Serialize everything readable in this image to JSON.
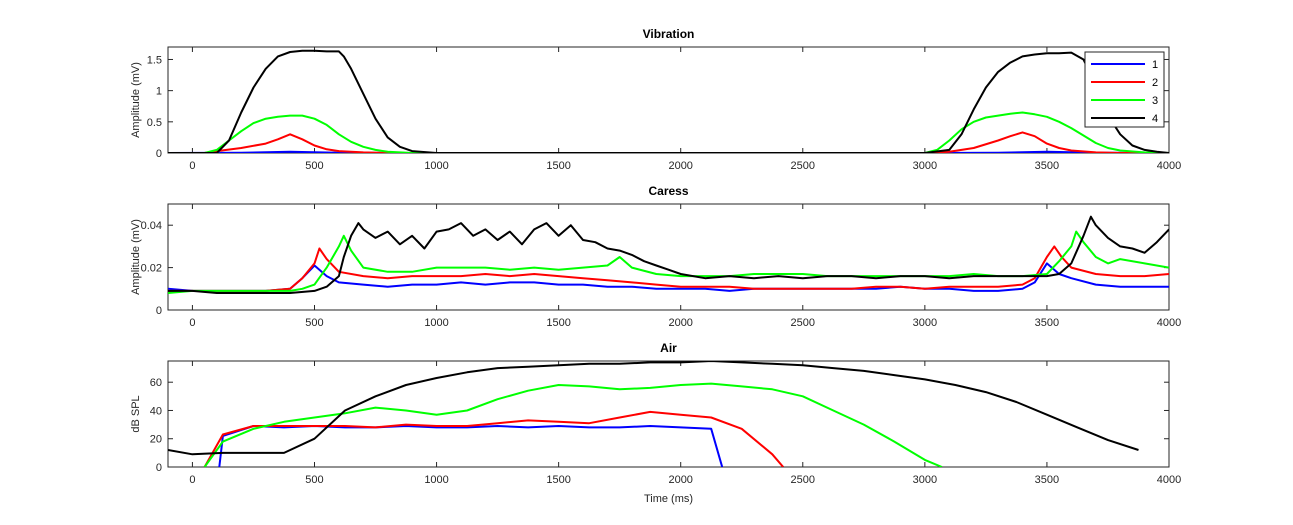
{
  "legend": {
    "placement": "top-right of first panel",
    "entries": [
      {
        "name": "1",
        "color": "#0000ff"
      },
      {
        "name": "2",
        "color": "#ff0000"
      },
      {
        "name": "3",
        "color": "#00ff00"
      },
      {
        "name": "4",
        "color": "#000000"
      }
    ]
  },
  "chart_data": [
    {
      "type": "line",
      "title": "Vibration",
      "xlabel": "",
      "ylabel": "Amplitude (mV)",
      "xlim": [
        -100,
        4000
      ],
      "ylim": [
        0,
        1.7
      ],
      "xticks": [
        0,
        500,
        1000,
        1500,
        2000,
        2500,
        3000,
        3500,
        4000
      ],
      "yticks": [
        0,
        0.5,
        1,
        1.5
      ],
      "ytick_labels": [
        "0",
        "0.5",
        "1",
        "1.5"
      ],
      "grid": false,
      "series": [
        {
          "name": "1",
          "color": "#0000ff",
          "x": [
            -100,
            200,
            400,
            600,
            900,
            3000,
            3300,
            3500,
            3700,
            4000
          ],
          "y": [
            0,
            0.005,
            0.02,
            0.005,
            0,
            0,
            0.005,
            0.02,
            0.005,
            0
          ]
        },
        {
          "name": "2",
          "color": "#ff0000",
          "x": [
            -100,
            50,
            100,
            200,
            300,
            350,
            400,
            450,
            500,
            550,
            600,
            700,
            800,
            3000,
            3100,
            3200,
            3300,
            3350,
            3400,
            3450,
            3500,
            3550,
            3600,
            3700,
            3800,
            4000
          ],
          "y": [
            0,
            0,
            0.03,
            0.08,
            0.15,
            0.22,
            0.3,
            0.22,
            0.12,
            0.06,
            0.03,
            0.01,
            0,
            0,
            0.02,
            0.08,
            0.2,
            0.27,
            0.33,
            0.27,
            0.15,
            0.08,
            0.04,
            0.01,
            0,
            0
          ]
        },
        {
          "name": "3",
          "color": "#00ff00",
          "x": [
            -100,
            50,
            100,
            150,
            200,
            250,
            300,
            350,
            400,
            450,
            500,
            550,
            600,
            650,
            700,
            750,
            800,
            900,
            3000,
            3050,
            3100,
            3150,
            3200,
            3250,
            3300,
            3350,
            3400,
            3450,
            3500,
            3550,
            3600,
            3650,
            3700,
            3750,
            3800,
            3900,
            4000
          ],
          "y": [
            0,
            0,
            0.05,
            0.2,
            0.35,
            0.48,
            0.55,
            0.58,
            0.6,
            0.6,
            0.55,
            0.45,
            0.3,
            0.18,
            0.1,
            0.05,
            0.02,
            0,
            0,
            0.05,
            0.2,
            0.38,
            0.5,
            0.57,
            0.6,
            0.63,
            0.65,
            0.62,
            0.58,
            0.5,
            0.4,
            0.28,
            0.16,
            0.08,
            0.04,
            0.01,
            0
          ]
        },
        {
          "name": "4",
          "color": "#000000",
          "x": [
            -100,
            100,
            150,
            200,
            250,
            300,
            350,
            400,
            450,
            500,
            550,
            600,
            620,
            650,
            700,
            750,
            800,
            850,
            900,
            1000,
            3000,
            3100,
            3150,
            3200,
            3250,
            3300,
            3350,
            3400,
            3450,
            3500,
            3550,
            3600,
            3650,
            3700,
            3750,
            3800,
            3850,
            3900,
            3950,
            4000
          ],
          "y": [
            0,
            0,
            0.2,
            0.65,
            1.05,
            1.35,
            1.55,
            1.62,
            1.64,
            1.64,
            1.63,
            1.63,
            1.55,
            1.35,
            0.95,
            0.55,
            0.25,
            0.1,
            0.03,
            0,
            0,
            0.05,
            0.3,
            0.7,
            1.05,
            1.3,
            1.45,
            1.55,
            1.58,
            1.6,
            1.6,
            1.61,
            1.5,
            1.1,
            0.6,
            0.3,
            0.12,
            0.05,
            0.02,
            0
          ]
        }
      ]
    },
    {
      "type": "line",
      "title": "Caress",
      "xlabel": "",
      "ylabel": "Amplitude (mV)",
      "xlim": [
        -100,
        4000
      ],
      "ylim": [
        0,
        0.05
      ],
      "xticks": [
        0,
        500,
        1000,
        1500,
        2000,
        2500,
        3000,
        3500,
        4000
      ],
      "yticks": [
        0,
        0.02,
        0.04
      ],
      "ytick_labels": [
        "0",
        "0.02",
        "0.04"
      ],
      "grid": false,
      "series": [
        {
          "name": "1",
          "color": "#0000ff",
          "x": [
            -100,
            0,
            100,
            200,
            300,
            400,
            450,
            500,
            550,
            600,
            700,
            800,
            900,
            1000,
            1100,
            1200,
            1300,
            1400,
            1500,
            1600,
            1700,
            1800,
            1900,
            2000,
            2100,
            2200,
            2300,
            2400,
            2500,
            2600,
            2700,
            2800,
            2900,
            3000,
            3100,
            3200,
            3300,
            3400,
            3450,
            3500,
            3550,
            3600,
            3700,
            3800,
            3900,
            4000
          ],
          "y": [
            0.01,
            0.009,
            0.009,
            0.009,
            0.009,
            0.01,
            0.015,
            0.021,
            0.016,
            0.013,
            0.012,
            0.011,
            0.012,
            0.012,
            0.013,
            0.012,
            0.013,
            0.013,
            0.012,
            0.012,
            0.011,
            0.011,
            0.01,
            0.01,
            0.01,
            0.009,
            0.01,
            0.01,
            0.01,
            0.01,
            0.01,
            0.01,
            0.011,
            0.01,
            0.01,
            0.009,
            0.009,
            0.01,
            0.013,
            0.022,
            0.017,
            0.015,
            0.012,
            0.011,
            0.011,
            0.011
          ]
        },
        {
          "name": "2",
          "color": "#ff0000",
          "x": [
            -100,
            0,
            100,
            200,
            300,
            400,
            450,
            500,
            520,
            550,
            600,
            700,
            800,
            900,
            1000,
            1100,
            1200,
            1300,
            1400,
            1500,
            1600,
            1700,
            1800,
            1900,
            2000,
            2100,
            2200,
            2300,
            2400,
            2500,
            2600,
            2700,
            2800,
            2900,
            3000,
            3100,
            3200,
            3300,
            3400,
            3450,
            3500,
            3530,
            3560,
            3600,
            3700,
            3800,
            3900,
            4000
          ],
          "y": [
            0.009,
            0.009,
            0.009,
            0.009,
            0.009,
            0.01,
            0.015,
            0.022,
            0.029,
            0.024,
            0.018,
            0.016,
            0.015,
            0.016,
            0.016,
            0.016,
            0.017,
            0.016,
            0.017,
            0.016,
            0.015,
            0.014,
            0.013,
            0.012,
            0.011,
            0.011,
            0.011,
            0.01,
            0.01,
            0.01,
            0.01,
            0.01,
            0.011,
            0.011,
            0.01,
            0.011,
            0.011,
            0.011,
            0.012,
            0.015,
            0.025,
            0.03,
            0.025,
            0.02,
            0.017,
            0.016,
            0.016,
            0.017
          ]
        },
        {
          "name": "3",
          "color": "#00ff00",
          "x": [
            -100,
            0,
            100,
            200,
            300,
            400,
            450,
            500,
            550,
            600,
            620,
            650,
            700,
            800,
            900,
            1000,
            1100,
            1200,
            1300,
            1400,
            1500,
            1600,
            1700,
            1750,
            1800,
            1900,
            2000,
            2100,
            2200,
            2300,
            2400,
            2500,
            2600,
            2700,
            2800,
            2900,
            3000,
            3100,
            3200,
            3300,
            3400,
            3500,
            3550,
            3600,
            3620,
            3650,
            3700,
            3750,
            3800,
            3900,
            4000
          ],
          "y": [
            0.008,
            0.009,
            0.009,
            0.009,
            0.009,
            0.009,
            0.01,
            0.012,
            0.02,
            0.03,
            0.035,
            0.028,
            0.02,
            0.018,
            0.018,
            0.02,
            0.02,
            0.02,
            0.019,
            0.02,
            0.019,
            0.02,
            0.021,
            0.025,
            0.02,
            0.017,
            0.016,
            0.016,
            0.016,
            0.017,
            0.017,
            0.017,
            0.016,
            0.016,
            0.016,
            0.016,
            0.016,
            0.016,
            0.017,
            0.016,
            0.016,
            0.017,
            0.023,
            0.03,
            0.037,
            0.032,
            0.025,
            0.022,
            0.024,
            0.022,
            0.02
          ]
        },
        {
          "name": "4",
          "color": "#000000",
          "x": [
            -100,
            0,
            100,
            200,
            300,
            400,
            500,
            550,
            600,
            620,
            650,
            680,
            700,
            750,
            800,
            850,
            900,
            950,
            1000,
            1050,
            1100,
            1150,
            1200,
            1250,
            1300,
            1350,
            1400,
            1450,
            1500,
            1550,
            1600,
            1650,
            1700,
            1750,
            1800,
            1850,
            1900,
            1950,
            2000,
            2100,
            2200,
            2300,
            2400,
            2500,
            2600,
            2700,
            2800,
            2900,
            3000,
            3100,
            3200,
            3300,
            3400,
            3500,
            3550,
            3600,
            3650,
            3680,
            3700,
            3750,
            3800,
            3850,
            3900,
            3950,
            4000
          ],
          "y": [
            0.009,
            0.009,
            0.008,
            0.008,
            0.008,
            0.008,
            0.009,
            0.011,
            0.016,
            0.025,
            0.035,
            0.041,
            0.038,
            0.034,
            0.037,
            0.031,
            0.035,
            0.029,
            0.037,
            0.038,
            0.041,
            0.035,
            0.038,
            0.033,
            0.037,
            0.031,
            0.038,
            0.041,
            0.035,
            0.04,
            0.033,
            0.032,
            0.029,
            0.028,
            0.026,
            0.023,
            0.021,
            0.019,
            0.017,
            0.015,
            0.016,
            0.015,
            0.016,
            0.015,
            0.016,
            0.016,
            0.015,
            0.016,
            0.016,
            0.015,
            0.016,
            0.016,
            0.016,
            0.016,
            0.017,
            0.022,
            0.035,
            0.044,
            0.04,
            0.034,
            0.03,
            0.029,
            0.027,
            0.032,
            0.038
          ]
        }
      ]
    },
    {
      "type": "line",
      "title": "Air",
      "xlabel": "Time (ms)",
      "ylabel": "dB SPL",
      "xlim": [
        -100,
        4000
      ],
      "ylim": [
        0,
        75
      ],
      "xticks": [
        0,
        500,
        1000,
        1500,
        2000,
        2500,
        3000,
        3500,
        4000
      ],
      "yticks": [
        0,
        20,
        40,
        60
      ],
      "ytick_labels": [
        "0",
        "20",
        "40",
        "60"
      ],
      "grid": false,
      "series": [
        {
          "name": "1",
          "color": "#0000ff",
          "x": [
            110,
            125,
            250,
            375,
            500,
            625,
            750,
            875,
            1000,
            1125,
            1250,
            1375,
            1500,
            1625,
            1750,
            1875,
            2000,
            2125,
            2170
          ],
          "y": [
            0,
            22,
            29,
            28,
            29,
            28,
            28,
            29,
            28,
            28,
            29,
            28,
            29,
            28,
            28,
            29,
            28,
            27,
            0
          ]
        },
        {
          "name": "2",
          "color": "#ff0000",
          "x": [
            50,
            125,
            250,
            375,
            500,
            625,
            750,
            875,
            1000,
            1125,
            1250,
            1375,
            1500,
            1625,
            1750,
            1875,
            2000,
            2125,
            2250,
            2375,
            2420
          ],
          "y": [
            0,
            23,
            29,
            29,
            29,
            29,
            28,
            30,
            29,
            29,
            31,
            33,
            32,
            31,
            35,
            39,
            37,
            35,
            27,
            9,
            0
          ]
        },
        {
          "name": "3",
          "color": "#00ff00",
          "x": [
            50,
            125,
            250,
            375,
            500,
            625,
            750,
            875,
            1000,
            1125,
            1250,
            1375,
            1500,
            1625,
            1750,
            1875,
            2000,
            2125,
            2250,
            2375,
            2500,
            2625,
            2750,
            2875,
            3000,
            3070
          ],
          "y": [
            0,
            18,
            27,
            32,
            35,
            38,
            42,
            40,
            37,
            40,
            48,
            54,
            58,
            57,
            55,
            56,
            58,
            59,
            57,
            55,
            50,
            40,
            30,
            18,
            5,
            0
          ]
        },
        {
          "name": "4",
          "color": "#000000",
          "x": [
            -100,
            0,
            125,
            250,
            375,
            500,
            625,
            750,
            875,
            1000,
            1125,
            1250,
            1375,
            1500,
            1625,
            1750,
            1875,
            2000,
            2125,
            2250,
            2375,
            2500,
            2625,
            2750,
            2875,
            3000,
            3125,
            3250,
            3375,
            3500,
            3625,
            3750,
            3875
          ],
          "y": [
            12,
            9,
            10,
            10,
            10,
            20,
            40,
            50,
            58,
            63,
            67,
            70,
            71,
            72,
            73,
            73,
            74,
            74,
            75,
            74,
            73,
            72,
            70,
            68,
            65,
            62,
            58,
            53,
            46,
            37,
            28,
            19,
            12
          ]
        }
      ]
    }
  ]
}
